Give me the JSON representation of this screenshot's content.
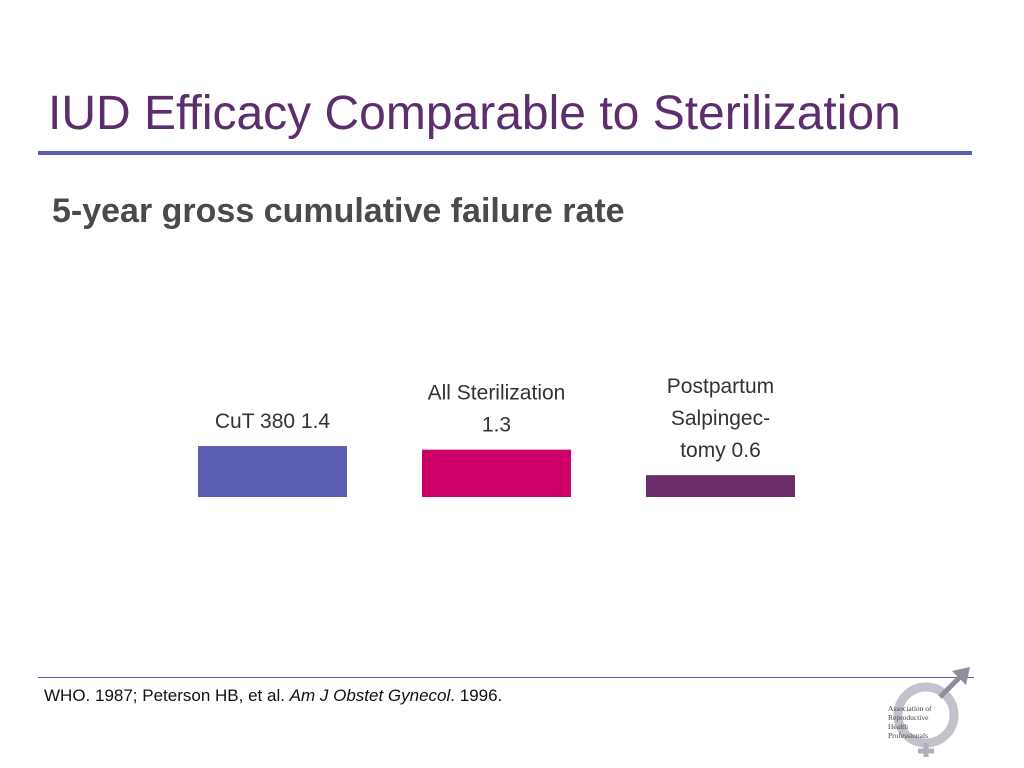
{
  "slide": {
    "title": "IUD Efficacy Comparable to Sterilization",
    "subtitle": "5-year gross cumulative failure rate"
  },
  "chart_data": {
    "type": "bar",
    "title": "",
    "xlabel": "",
    "ylabel": "",
    "categories": [
      "CuT 380",
      "All Sterilization",
      "Postpartum Salpingectomy"
    ],
    "values": [
      1.4,
      1.3,
      0.6
    ],
    "data_labels": [
      [
        "CuT 380 1.4"
      ],
      [
        "All Sterilization",
        "1.3"
      ],
      [
        "Postpartum",
        "Salpingec-",
        "tomy 0.6"
      ]
    ],
    "colors": [
      "#5a5db0",
      "#cc0066",
      "#6b2d6b"
    ],
    "ylim": [
      0,
      1.4
    ],
    "grid": false,
    "legend": "none"
  },
  "footer": {
    "citation_prefix": "WHO. 1987; Peterson HB, et al. ",
    "citation_journal": "Am J Obstet Gynecol",
    "citation_suffix": ". 1996."
  },
  "logo": {
    "text_lines": [
      "Association of",
      "Reproductive",
      "Health",
      "Professionals"
    ],
    "colors": {
      "symbol": "#b8b8c4",
      "symbol_dark": "#8a8a9a"
    }
  }
}
